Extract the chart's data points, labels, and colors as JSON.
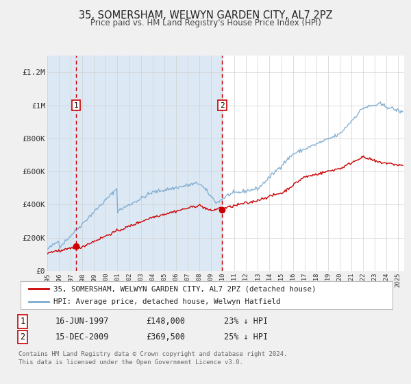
{
  "title": "35, SOMERSHAM, WELWYN GARDEN CITY, AL7 2PZ",
  "subtitle": "Price paid vs. HM Land Registry's House Price Index (HPI)",
  "bg_color": "#f0f0f0",
  "plot_bg_color": "#ffffff",
  "ylim": [
    0,
    1300000
  ],
  "xlim_start": 1995.0,
  "xlim_end": 2025.5,
  "yticks": [
    0,
    200000,
    400000,
    600000,
    800000,
    1000000,
    1200000
  ],
  "ytick_labels": [
    "£0",
    "£200K",
    "£400K",
    "£600K",
    "£800K",
    "£1M",
    "£1.2M"
  ],
  "xtick_years": [
    1995,
    1996,
    1997,
    1998,
    1999,
    2000,
    2001,
    2002,
    2003,
    2004,
    2005,
    2006,
    2007,
    2008,
    2009,
    2010,
    2011,
    2012,
    2013,
    2014,
    2015,
    2016,
    2017,
    2018,
    2019,
    2020,
    2021,
    2022,
    2023,
    2024,
    2025
  ],
  "red_line_color": "#cc0000",
  "blue_line_color": "#7aaad0",
  "dashed_line_color": "#cc0000",
  "marker_color": "#cc0000",
  "shade_color": "#dce8f4",
  "sale1_x": 1997.46,
  "sale1_y": 148000,
  "sale1_label": "1",
  "sale2_x": 2009.96,
  "sale2_y": 369500,
  "sale2_label": "2",
  "ann_y": 1000000,
  "legend_label_red": "35, SOMERSHAM, WELWYN GARDEN CITY, AL7 2PZ (detached house)",
  "legend_label_blue": "HPI: Average price, detached house, Welwyn Hatfield",
  "table_row1_num": "1",
  "table_row1_date": "16-JUN-1997",
  "table_row1_price": "£148,000",
  "table_row1_hpi": "23% ↓ HPI",
  "table_row2_num": "2",
  "table_row2_date": "15-DEC-2009",
  "table_row2_price": "£369,500",
  "table_row2_hpi": "25% ↓ HPI",
  "footer_line1": "Contains HM Land Registry data © Crown copyright and database right 2024.",
  "footer_line2": "This data is licensed under the Open Government Licence v3.0."
}
